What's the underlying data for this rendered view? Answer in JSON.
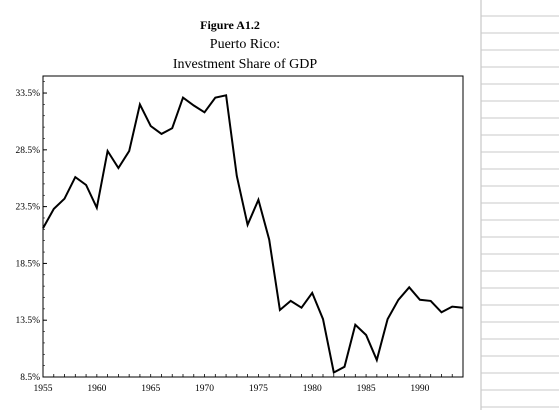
{
  "figure_label": "Figure A1.2",
  "chart_data": {
    "type": "line",
    "title": [
      "Puerto Rico:",
      "Investment Share of GDP"
    ],
    "xlabel": "",
    "ylabel": "",
    "xlim": [
      1955,
      1994
    ],
    "ylim": [
      8.5,
      35.0
    ],
    "x_ticks": [
      1955,
      1960,
      1965,
      1970,
      1975,
      1980,
      1985,
      1990
    ],
    "y_ticks": [
      8.5,
      13.5,
      18.5,
      23.5,
      28.5,
      33.5
    ],
    "y_tick_labels": [
      "8.5%",
      "13.5%",
      "18.5%",
      "23.5%",
      "28.5%",
      "33.5%"
    ],
    "grid": false,
    "legend": "none",
    "line_color": "#000000",
    "series": [
      {
        "x": [
          1955,
          1956,
          1957,
          1958,
          1959,
          1960,
          1961,
          1962,
          1963,
          1964,
          1965,
          1966,
          1967,
          1968,
          1969,
          1970,
          1971,
          1972,
          1973,
          1974,
          1975,
          1976,
          1977,
          1978,
          1979,
          1980,
          1981,
          1982,
          1983,
          1984,
          1985,
          1986,
          1987,
          1988,
          1989,
          1990,
          1991,
          1992,
          1993,
          1994
        ],
        "values": [
          21.6,
          23.3,
          24.2,
          26.1,
          25.4,
          23.4,
          28.4,
          26.9,
          28.4,
          32.5,
          30.6,
          29.9,
          30.4,
          33.1,
          32.4,
          31.8,
          33.1,
          33.3,
          26.2,
          21.9,
          24.1,
          20.6,
          14.4,
          15.2,
          14.6,
          15.9,
          13.6,
          8.9,
          9.4,
          13.1,
          12.2,
          10.0,
          13.6,
          15.3,
          16.4,
          15.3,
          15.2,
          14.2,
          14.7,
          14.6
        ]
      }
    ]
  }
}
